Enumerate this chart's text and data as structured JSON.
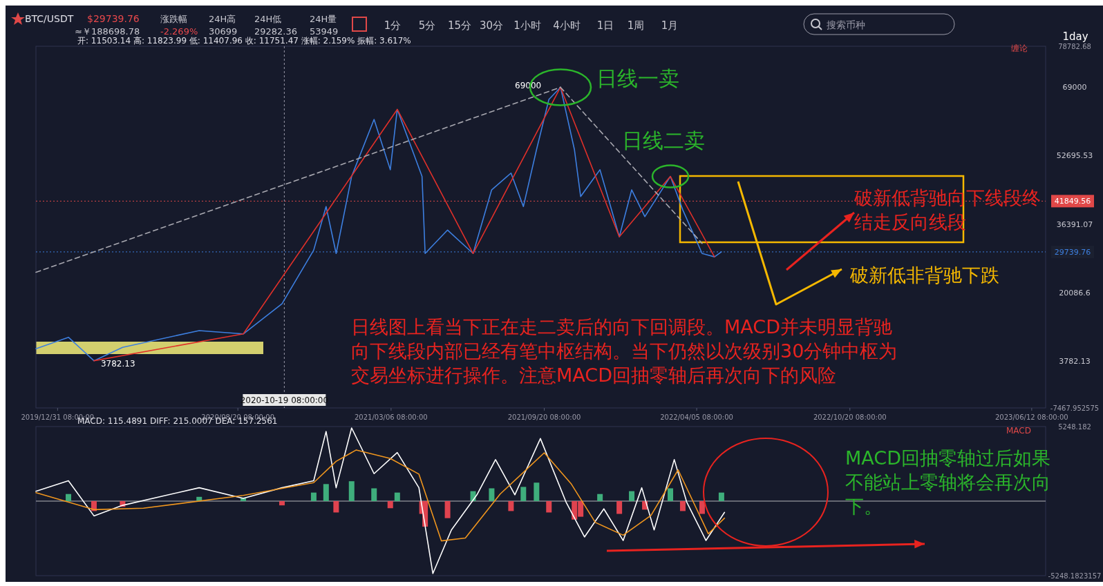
{
  "chart_data": [
    {
      "type": "line",
      "title": "BTC/USDT",
      "subtitle": "开: 11503.14  高: 11823.99  低: 11407.96  收: 11751.47  涨幅: 2.159%  振幅: 3.617%",
      "xlim": [
        "2019-12-03",
        "2023-06-30"
      ],
      "xticks": [
        {
          "value": "2019-12-31",
          "label": "2019/12/31 08:00:00"
        },
        {
          "value": "2020-08-20",
          "label": "2020/08/20 08:00:00"
        },
        {
          "value": "2021-03-06",
          "label": "2021/03/06 08:00:00"
        },
        {
          "value": "2021-09-20",
          "label": "2021/09/20 08:00:00"
        },
        {
          "value": "2022-04-05",
          "label": "2022/04/05 08:00:00"
        },
        {
          "value": "2022-10-20",
          "label": "2022/10/20 08:00:00"
        },
        {
          "value": "2023-06-12",
          "label": "2023/06/12 08:00:00"
        }
      ],
      "ylim": [
        -7467.952575,
        78782.68
      ],
      "yticks": [
        {
          "value": -7467.952575,
          "label": "-7467.952575"
        },
        3782.13,
        20086.6,
        36391.07,
        52695.53,
        69000,
        {
          "value": 78782.68,
          "label": "78782.68"
        }
      ],
      "series": [
        {
          "color": "#3d7fe0",
          "x": [
            "2019-12-03",
            "2020-01-14",
            "2020-02-16",
            "2020-03-24",
            "2020-07-01",
            "2020-08-27",
            "2020-10-16",
            "2020-11-26",
            "2020-12-12",
            "2020-12-25",
            "2021-01-14",
            "2021-02-12",
            "2021-03-05",
            "2021-03-14",
            "2021-04-15",
            "2021-04-19",
            "2021-05-18",
            "2021-06-20",
            "2021-07-14",
            "2021-08-08",
            "2021-08-24",
            "2021-09-10",
            "2021-09-26",
            "2021-10-11",
            "2021-10-29",
            "2021-11-06",
            "2021-12-01",
            "2021-12-26",
            "2022-01-11",
            "2022-01-28",
            "2022-03-02",
            "2022-03-18",
            "2022-04-12",
            "2022-04-28",
            "2022-05-07"
          ],
          "values": [
            6660,
            9380,
            3782.13,
            6980,
            10980,
            10180,
            17370,
            30160,
            40550,
            29360,
            47740,
            61330,
            49340,
            63730,
            47740,
            29360,
            34950,
            29360,
            44540,
            48540,
            40550,
            54130,
            66120,
            69000,
            54130,
            42940,
            49340,
            33350,
            44540,
            38150,
            47740,
            39750,
            29360,
            28560,
            29739.76
          ]
        },
        {
          "color": "#e0302a",
          "x": [
            "2020-02-16",
            "2020-08-27",
            "2021-03-14",
            "2021-06-20",
            "2021-10-11",
            "2021-12-26",
            "2022-03-02",
            "2022-04-28"
          ],
          "values": [
            3782.13,
            10180,
            63730,
            29360,
            69000,
            33350,
            47740,
            28560
          ]
        },
        {
          "color": "#a8a8b0",
          "line_style": "dashed",
          "x": [
            "2019-12-03",
            "2021-10-11"
          ],
          "values": [
            24880,
            69000
          ]
        },
        {
          "color": "#a8a8b0",
          "line_style": "dashed",
          "x": [
            "2021-10-11",
            "2022-04-12"
          ],
          "values": [
            69000,
            31760
          ]
        }
      ],
      "ref_lines": [
        {
          "axis": "y",
          "value": 41849.56,
          "label": "41849.56",
          "color": "#e04848"
        },
        {
          "axis": "y",
          "value": 29739.76,
          "label": "29739.76",
          "color": "#3d7fe0"
        },
        {
          "axis": "x",
          "value": "2020-10-19",
          "label": "2020-10-19 08:00:00",
          "color": "#9a9aa8"
        }
      ],
      "annotations": [
        {
          "text": "69000",
          "x": "2021-10-11",
          "y": 69000
        },
        {
          "text": "日线一卖",
          "x": "2021-10-11",
          "y": 69000
        },
        {
          "text": "日线二卖",
          "x": "2022-03-02",
          "y": 47740
        },
        {
          "text": "3782.13",
          "x": "2020-02-16",
          "y": 3782.13
        },
        "破新低背驰向下线段终结走反向线段",
        "破新低非背驰下跌",
        "日线图上看当下正在走二卖后的向下回调段。MACD并未明显背驰向下线段内部已经有笔中枢结构。当下仍然以次级别30分钟中枢为交易坐标进行操作。注意MACD回抽零轴后再次向下的风险",
        "$29739.76",
        "≈￥188698.78",
        "涨跌幅",
        "-2.269%",
        "24H高",
        "30699",
        "24H低",
        "29282.36",
        "24H量",
        "53949",
        "1分",
        "5分",
        "15分",
        "30分",
        "1小时",
        "4小时",
        "1日",
        "1周",
        "1月",
        "搜索币种",
        "1day",
        "缠论"
      ]
    },
    {
      "type": "line",
      "subtitle": "MACD: 115.4891  DIFF: 215.0007  DEA: 157.2561",
      "tick_labels": "y",
      "xlim": [
        "2019-12-03",
        "2023-06-30"
      ],
      "ylim": [
        -5248.1823157,
        5248.182
      ],
      "yticks": [
        {
          "value": -5248.1823157,
          "label": "-5248.1823157"
        },
        {
          "value": 5248.182,
          "label": "5248.182"
        }
      ],
      "series": [
        {
          "type": "bar",
          "x": [
            "2020-01-14",
            "2020-02-16",
            "2020-03-24",
            "2020-07-01",
            "2020-08-27",
            "2020-10-16",
            "2020-11-26",
            "2020-12-12",
            "2020-12-25",
            "2021-01-14",
            "2021-02-12",
            "2021-03-05",
            "2021-03-14",
            "2021-04-15",
            "2021-04-19",
            "2021-05-18",
            "2021-06-20",
            "2021-07-14",
            "2021-08-08",
            "2021-08-24",
            "2021-09-10",
            "2021-09-26",
            "2021-10-29",
            "2021-11-06",
            "2021-12-01",
            "2021-12-26",
            "2022-01-11",
            "2022-01-28",
            "2022-03-02",
            "2022-03-18",
            "2022-04-12",
            "2022-05-07"
          ],
          "values": [
            500,
            -700,
            -400,
            300,
            250,
            -300,
            600,
            1200,
            -800,
            1400,
            900,
            -500,
            600,
            -900,
            -1800,
            -1200,
            700,
            900,
            -700,
            1000,
            1300,
            -800,
            -1300,
            -1100,
            500,
            -900,
            700,
            -600,
            900,
            -700,
            -900,
            600
          ],
          "colors": [
            "#3fae7c",
            "#e0434f",
            "#e0434f",
            "#3fae7c",
            "#3fae7c",
            "#e0434f",
            "#3fae7c",
            "#3fae7c",
            "#e0434f",
            "#3fae7c",
            "#3fae7c",
            "#e0434f",
            "#3fae7c",
            "#e0434f",
            "#e0434f",
            "#e0434f",
            "#3fae7c",
            "#3fae7c",
            "#e0434f",
            "#3fae7c",
            "#3fae7c",
            "#e0434f",
            "#e0434f",
            "#e0434f",
            "#3fae7c",
            "#e0434f",
            "#3fae7c",
            "#e0434f",
            "#3fae7c",
            "#e0434f",
            "#e0434f",
            "#3fae7c"
          ]
        },
        {
          "color": "#ffffff",
          "x": [
            "2019-12-03",
            "2020-01-14",
            "2020-02-16",
            "2020-03-24",
            "2020-07-01",
            "2020-08-27",
            "2020-10-16",
            "2020-11-26",
            "2020-12-12",
            "2020-12-25",
            "2021-01-14",
            "2021-02-12",
            "2021-03-14",
            "2021-04-11",
            "2021-04-29",
            "2021-05-23",
            "2021-06-25",
            "2021-07-19",
            "2021-08-13",
            "2021-09-15",
            "2021-10-18",
            "2021-11-11",
            "2021-12-06",
            "2021-12-31",
            "2022-01-24",
            "2022-02-09",
            "2022-03-07",
            "2022-03-23",
            "2022-04-17",
            "2022-05-11"
          ],
          "values": [
            693,
            1436,
            -1040,
            -297,
            941,
            198,
            941,
            1436,
            4900,
            941,
            5150,
            1931,
            3416,
            941,
            -5100,
            -2030,
            446,
            2921,
            446,
            4406,
            -50,
            -2525,
            -545,
            -2772,
            941,
            -2030,
            2921,
            -50,
            -2772,
            -792
          ]
        },
        {
          "color": "#f0961e",
          "x": [
            "2019-12-03",
            "2020-02-16",
            "2020-04-20",
            "2020-08-27",
            "2020-11-26",
            "2020-12-25",
            "2021-01-20",
            "2021-03-05",
            "2021-04-11",
            "2021-05-10",
            "2021-06-10",
            "2021-07-25",
            "2021-09-20",
            "2021-10-25",
            "2021-11-25",
            "2021-12-31",
            "2022-02-05",
            "2022-03-12",
            "2022-04-20",
            "2022-05-11"
          ],
          "values": [
            600,
            -600,
            -500,
            400,
            1300,
            2800,
            3600,
            3000,
            1900,
            -2800,
            -2600,
            500,
            3400,
            1200,
            -1500,
            -2400,
            -1000,
            2200,
            -2300,
            -1200
          ]
        }
      ],
      "ref_lines": [
        {
          "axis": "y",
          "value": 0,
          "color": "#e0e0e0"
        }
      ],
      "annotations": [
        "MACD回抽零轴过后如果不能站上零轴将会再次向下。",
        "MACD"
      ]
    }
  ]
}
